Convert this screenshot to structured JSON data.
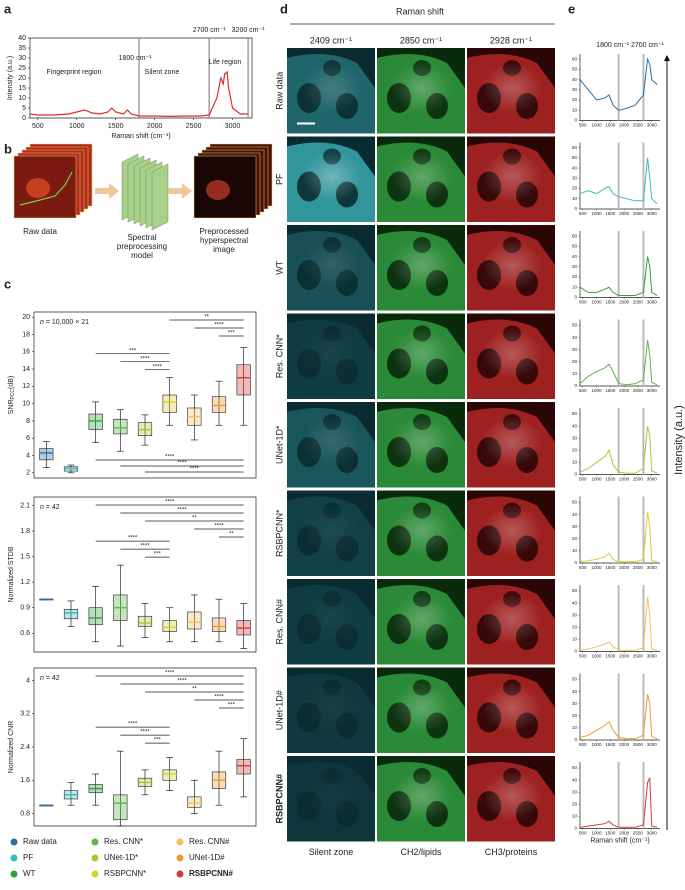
{
  "panel_a": {
    "label": "a",
    "ylabel": "Intensity (a.u.)",
    "xlabel": "Raman shift (cm⁻¹)",
    "xlim": [
      400,
      3250
    ],
    "ylim": [
      0,
      40
    ],
    "xticks": [
      500,
      1000,
      1500,
      2000,
      2500,
      3000
    ],
    "yticks": [
      0,
      5,
      10,
      15,
      20,
      25,
      30,
      35,
      40
    ],
    "regions": [
      "Fingerprint region",
      "Silent zone",
      "Life region"
    ],
    "vlines": [
      {
        "value": 1800,
        "label": "1800 cm⁻¹"
      },
      {
        "value": 2700,
        "label": "2700 cm⁻¹"
      },
      {
        "value": 3200,
        "label": "3200 cm⁻¹"
      }
    ],
    "color": "#d9302c",
    "x": [
      400,
      500,
      700,
      900,
      1000,
      1100,
      1200,
      1300,
      1400,
      1450,
      1500,
      1600,
      1650,
      1700,
      1800,
      2000,
      2200,
      2400,
      2600,
      2700,
      2800,
      2850,
      2880,
      2900,
      2930,
      2950,
      3000,
      3100,
      3200
    ],
    "values": [
      2,
      1.5,
      1.5,
      2,
      3,
      4,
      2.5,
      2,
      3,
      5,
      3,
      2,
      4,
      2,
      1,
      1,
      0.8,
      1,
      1,
      1.5,
      10,
      20,
      17,
      22,
      23,
      15,
      5,
      2,
      2
    ]
  },
  "panel_b": {
    "label": "b",
    "steps": [
      "Raw data",
      "Spectral preprocessing model",
      "Preprocessed hyperspectral image"
    ]
  },
  "panel_c": {
    "label": "c",
    "methods": [
      {
        "name": "Raw data",
        "color": "#2b6ea8"
      },
      {
        "name": "PF",
        "color": "#3cb9c0"
      },
      {
        "name": "WT",
        "color": "#2ea33a"
      },
      {
        "name": "Res. CNN*",
        "color": "#5db74b"
      },
      {
        "name": "UNet-1D*",
        "color": "#a5c93b"
      },
      {
        "name": "RSBPCNN*",
        "color": "#d7cf34"
      },
      {
        "name": "Res. CNN#",
        "color": "#f1c262"
      },
      {
        "name": "UNet-1D#",
        "color": "#ee9a3a"
      },
      {
        "name": "RSBPCNN#",
        "color": "#d63a3a"
      }
    ],
    "plots": [
      {
        "ylabel": "SNR",
        "ylabel_sub": "PCC",
        "ylabel_unit": "(dB)",
        "n": "n",
        "n_text": " = 10,000 × 21",
        "ylim": [
          1.4,
          20.6
        ],
        "yticks": [
          2,
          4,
          6,
          8,
          10,
          12,
          14,
          16,
          18,
          20
        ],
        "boxes": [
          {
            "min": 2.6,
            "q1": 3.5,
            "median": 4.3,
            "q3": 4.8,
            "max": 5.6
          },
          {
            "min": 2.0,
            "q1": 2.2,
            "median": 2.5,
            "q3": 2.7,
            "max": 2.9
          },
          {
            "min": 5.5,
            "q1": 7,
            "median": 8,
            "q3": 8.8,
            "max": 10.2
          },
          {
            "min": 4.5,
            "q1": 6.5,
            "median": 7.2,
            "q3": 8.2,
            "max": 9.3
          },
          {
            "min": 5.2,
            "q1": 6.3,
            "median": 7,
            "q3": 7.8,
            "max": 8.7
          },
          {
            "min": 7.5,
            "q1": 9,
            "median": 10.2,
            "q3": 11,
            "max": 13
          },
          {
            "min": 5.8,
            "q1": 7.5,
            "median": 8.5,
            "q3": 9.5,
            "max": 11
          },
          {
            "min": 7.5,
            "q1": 9,
            "median": 9.8,
            "q3": 10.8,
            "max": 12.6
          },
          {
            "min": 7.5,
            "q1": 11,
            "median": 13,
            "q3": 14.5,
            "max": 16.5
          }
        ],
        "brackets": [
          {
            "groups": [
              "RSBPCNN*",
              "RSBPCNN#"
            ],
            "label": "**",
            "side": "above"
          },
          {
            "groups": [
              "Res. CNN#",
              "RSBPCNN#"
            ],
            "label": "****",
            "side": "above"
          },
          {
            "groups": [
              "UNet-1D#",
              "RSBPCNN#"
            ],
            "label": "***",
            "side": "above"
          },
          {
            "groups": [
              "WT",
              "RSBPCNN*"
            ],
            "label": "***",
            "side": "above"
          },
          {
            "groups": [
              "Res. CNN*",
              "RSBPCNN*"
            ],
            "label": "****",
            "side": "above"
          },
          {
            "groups": [
              "UNet-1D*",
              "RSBPCNN*"
            ],
            "label": "****",
            "side": "above"
          },
          {
            "groups": [
              "UNet-1D*",
              "RSBPCNN#"
            ],
            "label": "****",
            "side": "below"
          },
          {
            "groups": [
              "Res. CNN*",
              "RSBPCNN#"
            ],
            "label": "****",
            "side": "below"
          },
          {
            "groups": [
              "WT",
              "RSBPCNN#"
            ],
            "label": "****",
            "side": "below"
          }
        ]
      },
      {
        "ylabel": "Normalized STDB",
        "n": "n",
        "n_text": " = 42",
        "ylim": [
          0.38,
          2.2
        ],
        "yticks": [
          0.6,
          0.9,
          1.2,
          1.5,
          1.8,
          2.1
        ],
        "boxes": [
          {
            "min": 1,
            "q1": 1,
            "median": 1,
            "q3": 1,
            "max": 1
          },
          {
            "min": 0.68,
            "q1": 0.77,
            "median": 0.84,
            "q3": 0.88,
            "max": 0.98
          },
          {
            "min": 0.5,
            "q1": 0.7,
            "median": 0.78,
            "q3": 0.9,
            "max": 1.15
          },
          {
            "min": 0.45,
            "q1": 0.75,
            "median": 0.9,
            "q3": 1.05,
            "max": 1.4
          },
          {
            "min": 0.55,
            "q1": 0.68,
            "median": 0.72,
            "q3": 0.8,
            "max": 0.95
          },
          {
            "min": 0.5,
            "q1": 0.62,
            "median": 0.67,
            "q3": 0.75,
            "max": 0.9
          },
          {
            "min": 0.5,
            "q1": 0.65,
            "median": 0.73,
            "q3": 0.85,
            "max": 1.05
          },
          {
            "min": 0.5,
            "q1": 0.62,
            "median": 0.68,
            "q3": 0.78,
            "max": 1.0
          },
          {
            "min": 0.42,
            "q1": 0.58,
            "median": 0.66,
            "q3": 0.75,
            "max": 0.95
          }
        ],
        "brackets": [
          {
            "groups": [
              "WT",
              "RSBPCNN#"
            ],
            "label": "****",
            "side": "above"
          },
          {
            "groups": [
              "Res. CNN*",
              "RSBPCNN#"
            ],
            "label": "****",
            "side": "above"
          },
          {
            "groups": [
              "UNet-1D*",
              "RSBPCNN#"
            ],
            "label": "**",
            "side": "above"
          },
          {
            "groups": [
              "Res. CNN#",
              "RSBPCNN#"
            ],
            "label": "****",
            "side": "above"
          },
          {
            "groups": [
              "UNet-1D#",
              "RSBPCNN#"
            ],
            "label": "**",
            "side": "above"
          },
          {
            "groups": [
              "WT",
              "RSBPCNN*"
            ],
            "label": "****",
            "side": "above"
          },
          {
            "groups": [
              "Res. CNN*",
              "RSBPCNN*"
            ],
            "label": "****",
            "side": "above"
          },
          {
            "groups": [
              "UNet-1D*",
              "RSBPCNN*"
            ],
            "label": "***",
            "side": "above"
          }
        ]
      },
      {
        "ylabel": "Normalized CNR",
        "n": "n",
        "n_text": " = 42",
        "ylim": [
          0.5,
          4.3
        ],
        "yticks": [
          0.8,
          1.6,
          2.4,
          3.2,
          4.0
        ],
        "boxes": [
          {
            "min": 1,
            "q1": 1,
            "median": 1,
            "q3": 1,
            "max": 1
          },
          {
            "min": 1.0,
            "q1": 1.15,
            "median": 1.25,
            "q3": 1.35,
            "max": 1.55
          },
          {
            "min": 1.0,
            "q1": 1.3,
            "median": 1.4,
            "q3": 1.5,
            "max": 1.75
          },
          {
            "min": 0.5,
            "q1": 0.65,
            "median": 1.05,
            "q3": 1.25,
            "max": 2.3
          },
          {
            "min": 1.25,
            "q1": 1.45,
            "median": 1.55,
            "q3": 1.65,
            "max": 1.85
          },
          {
            "min": 1.35,
            "q1": 1.6,
            "median": 1.75,
            "q3": 1.85,
            "max": 2.15
          },
          {
            "min": 0.8,
            "q1": 0.95,
            "median": 1.05,
            "q3": 1.2,
            "max": 1.6
          },
          {
            "min": 1.0,
            "q1": 1.4,
            "median": 1.6,
            "q3": 1.8,
            "max": 2.3
          },
          {
            "min": 1.2,
            "q1": 1.75,
            "median": 1.95,
            "q3": 2.1,
            "max": 2.6
          }
        ],
        "brackets": [
          {
            "groups": [
              "WT",
              "RSBPCNN#"
            ],
            "label": "****",
            "side": "above"
          },
          {
            "groups": [
              "Res. CNN*",
              "RSBPCNN#"
            ],
            "label": "****",
            "side": "above"
          },
          {
            "groups": [
              "UNet-1D*",
              "RSBPCNN#"
            ],
            "label": "**",
            "side": "above"
          },
          {
            "groups": [
              "Res. CNN#",
              "RSBPCNN#"
            ],
            "label": "****",
            "side": "above"
          },
          {
            "groups": [
              "UNet-1D#",
              "RSBPCNN#"
            ],
            "label": "***",
            "side": "above"
          },
          {
            "groups": [
              "WT",
              "RSBPCNN*"
            ],
            "label": "****",
            "side": "above"
          },
          {
            "groups": [
              "Res. CNN*",
              "RSBPCNN*"
            ],
            "label": "****",
            "side": "above"
          },
          {
            "groups": [
              "UNet-1D*",
              "RSBPCNN*"
            ],
            "label": "***",
            "side": "above"
          }
        ]
      }
    ]
  },
  "panel_d": {
    "label": "d",
    "title": "Raman shift",
    "columns": [
      "2409 cm⁻¹",
      "2850 cm⁻¹",
      "2928 cm⁻¹"
    ],
    "rows": [
      "Raw data",
      "PF",
      "WT",
      "Res. CNN*",
      "UNet-1D*",
      "RSBPCNN*",
      "Res. CNN#",
      "UNet-1D#",
      "RSBPCNN#"
    ],
    "bottom": [
      "Silent zone",
      "CH2/lipids",
      "CH3/proteins"
    ]
  },
  "panel_e": {
    "label": "e",
    "xlabel": "Raman shift (cm⁻¹)",
    "ylabel": "Intensity (a.u.)",
    "xlim": [
      400,
      3300
    ],
    "xticks": [
      500,
      1000,
      1500,
      2000,
      2500,
      3000
    ],
    "vlines": [
      {
        "value": 1800,
        "label": "1800 cm⁻¹"
      },
      {
        "value": 2700,
        "label": "2700 cm⁻¹"
      }
    ],
    "x": [
      400,
      700,
      1000,
      1300,
      1450,
      1600,
      1800,
      2100,
      2400,
      2700,
      2850,
      2930,
      3000,
      3200
    ],
    "rows": [
      {
        "ylim": [
          0,
          65
        ],
        "yticks": [
          0,
          10,
          20,
          30,
          40,
          50,
          60
        ],
        "values": [
          40,
          30,
          20,
          22,
          25,
          15,
          10,
          12,
          15,
          25,
          60,
          55,
          40,
          35
        ]
      },
      {
        "ylim": [
          0,
          65
        ],
        "yticks": [
          0,
          10,
          20,
          30,
          40,
          50,
          60
        ],
        "values": [
          15,
          18,
          15,
          20,
          22,
          15,
          12,
          10,
          8,
          8,
          50,
          30,
          10,
          5
        ]
      },
      {
        "ylim": [
          0,
          65
        ],
        "yticks": [
          0,
          10,
          20,
          30,
          40,
          50,
          60
        ],
        "values": [
          10,
          5,
          5,
          8,
          10,
          5,
          2,
          2,
          2,
          5,
          40,
          30,
          5,
          2
        ]
      },
      {
        "ylim": [
          0,
          55
        ],
        "yticks": [
          0,
          10,
          20,
          30,
          40,
          50
        ],
        "values": [
          2,
          8,
          12,
          15,
          18,
          12,
          2,
          1,
          2,
          5,
          38,
          25,
          3,
          1
        ]
      },
      {
        "ylim": [
          0,
          55
        ],
        "yticks": [
          0,
          10,
          20,
          30,
          40,
          50
        ],
        "values": [
          2,
          5,
          10,
          15,
          20,
          8,
          2,
          1,
          1,
          5,
          40,
          32,
          3,
          1
        ]
      },
      {
        "ylim": [
          0,
          55
        ],
        "yticks": [
          0,
          10,
          20,
          30,
          40,
          50
        ],
        "values": [
          1,
          2,
          3,
          5,
          8,
          3,
          1,
          1,
          1,
          3,
          42,
          30,
          2,
          1
        ]
      },
      {
        "ylim": [
          0,
          55
        ],
        "yticks": [
          0,
          10,
          20,
          30,
          40,
          50
        ],
        "values": [
          1,
          2,
          4,
          6,
          8,
          4,
          1,
          1,
          1,
          3,
          45,
          30,
          2,
          1
        ]
      },
      {
        "ylim": [
          0,
          55
        ],
        "yticks": [
          0,
          10,
          20,
          30,
          40,
          50
        ],
        "values": [
          2,
          4,
          8,
          12,
          15,
          8,
          2,
          1,
          1,
          4,
          38,
          30,
          3,
          1
        ]
      },
      {
        "ylim": [
          0,
          55
        ],
        "yticks": [
          0,
          10,
          20,
          30,
          40,
          50
        ],
        "values": [
          1,
          2,
          3,
          4,
          6,
          3,
          1,
          1,
          1,
          3,
          38,
          42,
          2,
          1
        ]
      }
    ]
  }
}
